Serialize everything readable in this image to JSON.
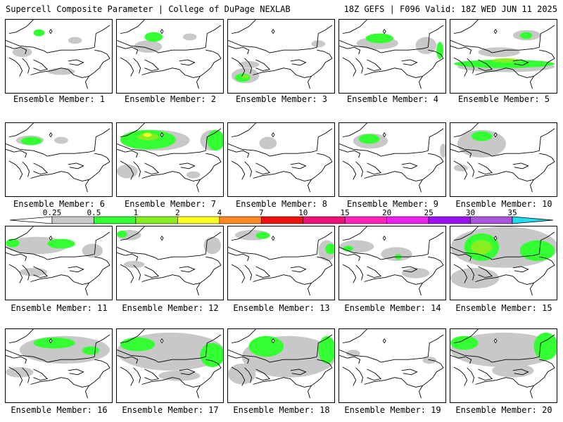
{
  "header": {
    "left": "Supercell Composite Parameter | College of DuPage NEXLAB",
    "right": "18Z GEFS | F096 Valid: 18Z WED JUN 11 2025"
  },
  "colorbar": {
    "ticks": [
      "0.25",
      "0.5",
      "1",
      "2",
      "4",
      "7",
      "10",
      "15",
      "20",
      "25",
      "30",
      "35"
    ],
    "colors": [
      "#c8c8c8",
      "#33ff33",
      "#88ee22",
      "#ffff22",
      "#ff8822",
      "#ee1111",
      "#ee1177",
      "#ff22bb",
      "#ee22ee",
      "#9911ee",
      "#aa55dd",
      "#22ddee"
    ]
  },
  "panels": [
    {
      "label": "Ensemble Member: 1"
    },
    {
      "label": "Ensemble Member: 2"
    },
    {
      "label": "Ensemble Member: 3"
    },
    {
      "label": "Ensemble Member: 4"
    },
    {
      "label": "Ensemble Member: 5"
    },
    {
      "label": "Ensemble Member: 6"
    },
    {
      "label": "Ensemble Member: 7"
    },
    {
      "label": "Ensemble Member: 8"
    },
    {
      "label": "Ensemble Member: 9"
    },
    {
      "label": "Ensemble Member: 10"
    },
    {
      "label": "Ensemble Member: 11"
    },
    {
      "label": "Ensemble Member: 12"
    },
    {
      "label": "Ensemble Member: 13"
    },
    {
      "label": "Ensemble Member: 14"
    },
    {
      "label": "Ensemble Member: 15"
    },
    {
      "label": "Ensemble Member: 16"
    },
    {
      "label": "Ensemble Member: 17"
    },
    {
      "label": "Ensemble Member: 18"
    },
    {
      "label": "Ensemble Member: 19"
    },
    {
      "label": "Ensemble Member: 20"
    }
  ]
}
